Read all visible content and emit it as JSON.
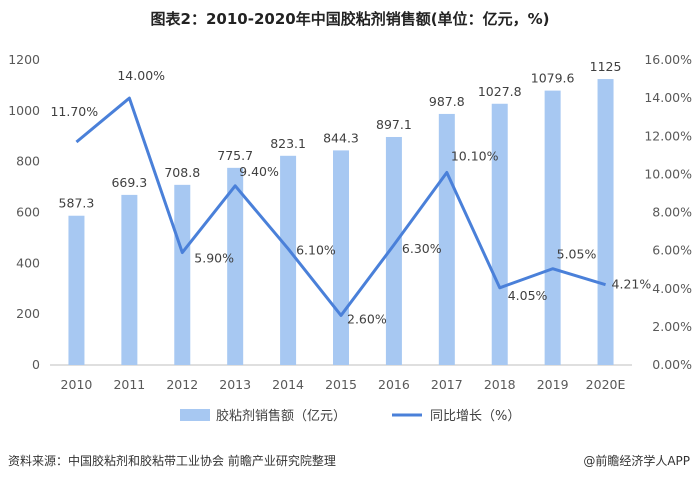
{
  "chart_data": {
    "type": "bar",
    "title": "图表2：2010-2020年中国胶粘剂销售额(单位：亿元，%)",
    "categories": [
      "2010",
      "2011",
      "2012",
      "2013",
      "2014",
      "2015",
      "2016",
      "2017",
      "2018",
      "2019",
      "2020E"
    ],
    "series": [
      {
        "name": "胶粘剂销售额（亿元）",
        "type": "bar",
        "axis": "left",
        "values": [
          587.3,
          669.3,
          708.8,
          775.7,
          823.1,
          844.3,
          897.1,
          987.8,
          1027.8,
          1079.6,
          1125
        ],
        "labels": [
          "587.3",
          "669.3",
          "708.8",
          "775.7",
          "823.1",
          "844.3",
          "897.1",
          "987.8",
          "1027.8",
          "1079.6",
          "1125"
        ],
        "color": "#a7c8f2"
      },
      {
        "name": "同比增长（%）",
        "type": "line",
        "axis": "right",
        "values": [
          11.7,
          14.0,
          5.9,
          9.4,
          6.1,
          2.6,
          6.3,
          10.1,
          4.05,
          5.05,
          4.21
        ],
        "labels": [
          "11.70%",
          "14.00%",
          "5.90%",
          "9.40%",
          "6.10%",
          "2.60%",
          "6.30%",
          "10.10%",
          "4.05%",
          "5.05%",
          "4.21%"
        ],
        "color": "#4a80d9"
      }
    ],
    "y_left": {
      "min": 0,
      "max": 1200,
      "ticks": [
        "0",
        "200",
        "400",
        "600",
        "800",
        "1000",
        "1200"
      ]
    },
    "y_right": {
      "min": 0,
      "max": 16,
      "ticks": [
        "0.00%",
        "2.00%",
        "4.00%",
        "6.00%",
        "8.00%",
        "10.00%",
        "12.00%",
        "14.00%",
        "16.00%"
      ]
    },
    "legend": [
      "胶粘剂销售额（亿元）",
      "同比增长（%）"
    ]
  },
  "footer": {
    "source": "资料来源：中国胶粘剂和胶粘带工业协会 前瞻产业研究院整理",
    "brand": "@前瞻经济学人APP"
  }
}
